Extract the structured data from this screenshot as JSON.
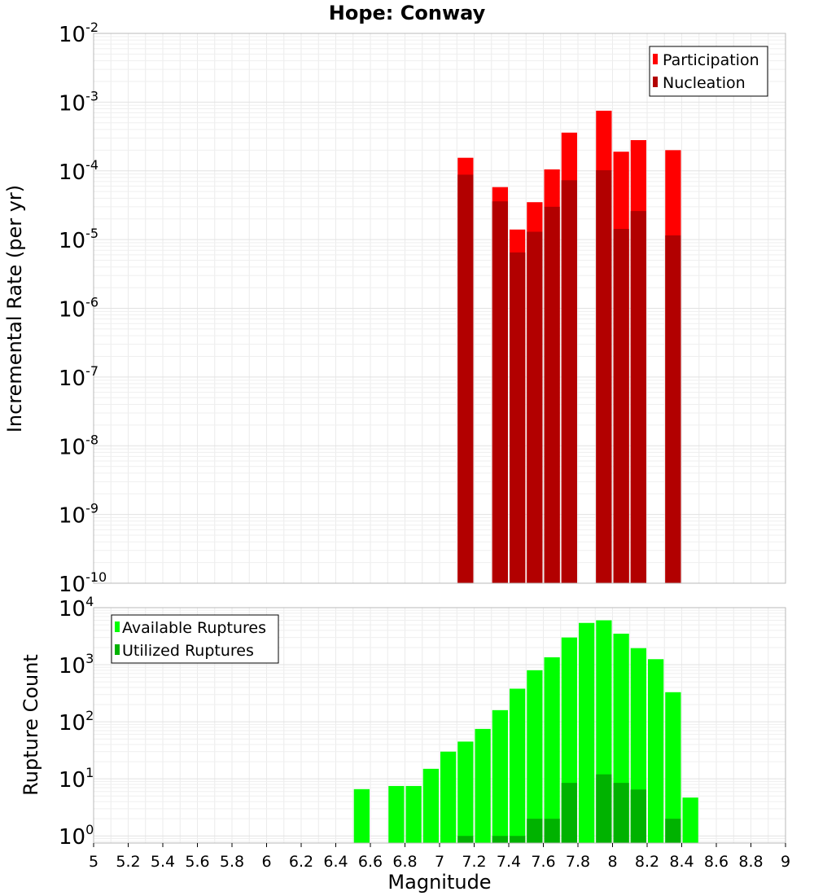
{
  "chart_data": [
    {
      "type": "bar",
      "title": "Hope: Conway",
      "xlabel": "",
      "ylabel": "Incremental Rate (per yr)",
      "yscale": "log",
      "ylim": [
        1e-10,
        0.01
      ],
      "xlim": [
        5,
        9
      ],
      "grid": true,
      "legend_position": "top-right",
      "bin_width": 0.1,
      "y_ticks": [
        {
          "base": "10",
          "exp": "-2",
          "value": 0.01
        },
        {
          "base": "10",
          "exp": "-3",
          "value": 0.001
        },
        {
          "base": "10",
          "exp": "-4",
          "value": 0.0001
        },
        {
          "base": "10",
          "exp": "-5",
          "value": 1e-05
        },
        {
          "base": "10",
          "exp": "-6",
          "value": 1e-06
        },
        {
          "base": "10",
          "exp": "-7",
          "value": 1e-07
        },
        {
          "base": "10",
          "exp": "-8",
          "value": 1e-08
        },
        {
          "base": "10",
          "exp": "-9",
          "value": 1e-09
        },
        {
          "base": "10",
          "exp": "-10",
          "value": 1e-10
        }
      ],
      "series": [
        {
          "name": "Participation",
          "color": "#ff0000",
          "points": [
            [
              7.15,
              0.000155
            ],
            [
              7.35,
              5.8e-05
            ],
            [
              7.45,
              1.4e-05
            ],
            [
              7.55,
              3.5e-05
            ],
            [
              7.65,
              0.000105
            ],
            [
              7.75,
              0.00036
            ],
            [
              7.95,
              0.00075
            ],
            [
              8.05,
              0.00019
            ],
            [
              8.15,
              0.00028
            ],
            [
              8.35,
              0.0002
            ]
          ]
        },
        {
          "name": "Nucleation",
          "color": "#b20000",
          "points": [
            [
              7.15,
              8.8e-05
            ],
            [
              7.35,
              3.6e-05
            ],
            [
              7.45,
              6.5e-06
            ],
            [
              7.55,
              1.3e-05
            ],
            [
              7.65,
              3e-05
            ],
            [
              7.75,
              7.3e-05
            ],
            [
              7.95,
              0.000102
            ],
            [
              8.05,
              1.43e-05
            ],
            [
              8.15,
              2.6e-05
            ],
            [
              8.35,
              1.15e-05
            ]
          ]
        }
      ]
    },
    {
      "type": "bar",
      "title": "",
      "xlabel": "Magnitude",
      "ylabel": "Rupture Count",
      "yscale": "log",
      "ylim": [
        0.75,
        10000
      ],
      "xlim": [
        5,
        9
      ],
      "grid": true,
      "legend_position": "top-left",
      "bin_width": 0.1,
      "y_ticks": [
        {
          "base": "10",
          "exp": "4",
          "value": 10000
        },
        {
          "base": "10",
          "exp": "3",
          "value": 1000
        },
        {
          "base": "10",
          "exp": "2",
          "value": 100
        },
        {
          "base": "10",
          "exp": "1",
          "value": 10
        },
        {
          "base": "10",
          "exp": "0",
          "value": 1
        }
      ],
      "x_ticks": [
        "5",
        "5.2",
        "5.4",
        "5.6",
        "5.8",
        "6",
        "6.2",
        "6.4",
        "6.6",
        "6.8",
        "7",
        "7.2",
        "7.4",
        "7.6",
        "7.8",
        "8",
        "8.2",
        "8.4",
        "8.6",
        "8.8",
        "9"
      ],
      "series": [
        {
          "name": "Available Ruptures",
          "color": "#00ff00",
          "points": [
            [
              6.55,
              6.6
            ],
            [
              6.75,
              7.5
            ],
            [
              6.85,
              7.5
            ],
            [
              6.95,
              15
            ],
            [
              7.05,
              30
            ],
            [
              7.15,
              45
            ],
            [
              7.25,
              75
            ],
            [
              7.35,
              160
            ],
            [
              7.45,
              380
            ],
            [
              7.55,
              800
            ],
            [
              7.65,
              1350
            ],
            [
              7.75,
              3000
            ],
            [
              7.85,
              5400
            ],
            [
              7.95,
              6000
            ],
            [
              8.05,
              3500
            ],
            [
              8.15,
              1950
            ],
            [
              8.25,
              1250
            ],
            [
              8.35,
              330
            ],
            [
              8.45,
              4.7
            ]
          ]
        },
        {
          "name": "Utilized Ruptures",
          "color": "#00b200",
          "points": [
            [
              7.15,
              1
            ],
            [
              7.35,
              1
            ],
            [
              7.45,
              1
            ],
            [
              7.55,
              2
            ],
            [
              7.65,
              2
            ],
            [
              7.75,
              8.5
            ],
            [
              7.95,
              12
            ],
            [
              8.05,
              8.5
            ],
            [
              8.15,
              6.5
            ],
            [
              8.35,
              2
            ]
          ]
        }
      ]
    }
  ]
}
